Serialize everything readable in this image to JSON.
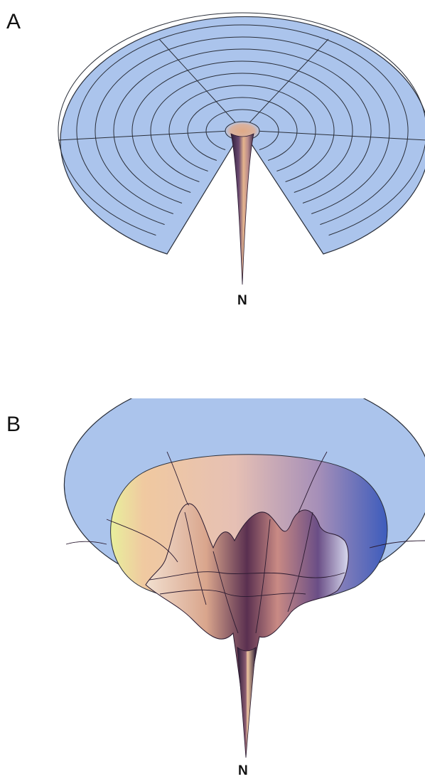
{
  "panels": [
    {
      "letter": "A",
      "funnel_label": "N"
    },
    {
      "letter": "B",
      "funnel_label": "N"
    }
  ],
  "colors": {
    "surface": "#a9c3ec",
    "mesh_line": "#2a2f3a",
    "funnel_dark": "#3a2440",
    "funnel_warm": "#e8b48a",
    "rugged_peach": "#e9c4b4",
    "rugged_purple": "#8a7aa8",
    "rim_yellow": "#e7ee9a",
    "deep_blue": "#3b58b8"
  }
}
